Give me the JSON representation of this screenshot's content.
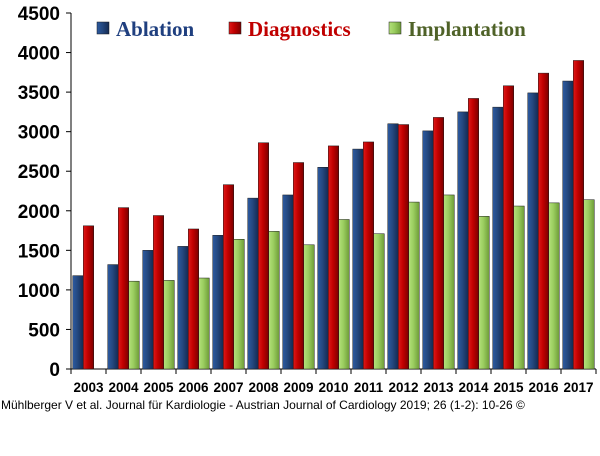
{
  "chart_data": {
    "type": "bar",
    "categories": [
      "2003",
      "2004",
      "2005",
      "2006",
      "2007",
      "2008",
      "2009",
      "2010",
      "2011",
      "2012",
      "2013",
      "2014",
      "2015",
      "2016",
      "2017"
    ],
    "series": [
      {
        "name": "Ablation",
        "color": "#1f3f7f",
        "text_color": "#1f3f7f",
        "values": [
          1180,
          1320,
          1500,
          1550,
          1690,
          2160,
          2200,
          2550,
          2780,
          3100,
          3010,
          3250,
          3310,
          3490,
          3640
        ]
      },
      {
        "name": "Diagnostics",
        "color": "#c00000",
        "text_color": "#c00000",
        "values": [
          1810,
          2040,
          1940,
          1770,
          2330,
          2860,
          2610,
          2820,
          2870,
          3090,
          3180,
          3420,
          3580,
          3740,
          3900
        ]
      },
      {
        "name": "Implantation",
        "color": "#9acd5f",
        "text_color": "#4f6228",
        "values": [
          0,
          1110,
          1120,
          1150,
          1640,
          1740,
          1570,
          1890,
          1710,
          2110,
          2200,
          1930,
          2060,
          2100,
          2140
        ]
      }
    ],
    "yticks": [
      0,
      500,
      1000,
      1500,
      2000,
      2500,
      3000,
      3500,
      4000,
      4500
    ],
    "ylim": [
      0,
      4500
    ],
    "title": "",
    "xlabel": "",
    "ylabel": "",
    "grid": false,
    "legend_position": "top"
  },
  "credit": "Mühlberger V et al. Journal für Kardiologie - Austrian Journal of Cardiology 2019; 26 (1-2): 10-26 ©"
}
